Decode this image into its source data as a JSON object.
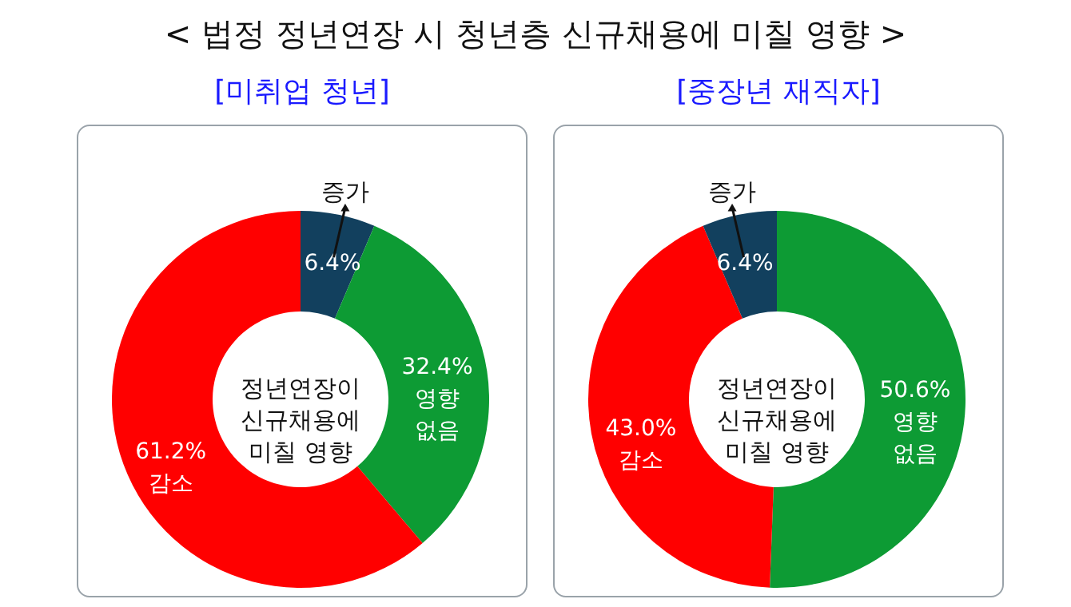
{
  "chart_data": [
    {
      "type": "donut",
      "title": "< 법정 정년연장 시 청년층 신규채용에 미칠 영향 >",
      "subtitle": "[미취업 청년]",
      "categories": [
        "증가",
        "영향 없음",
        "감소"
      ],
      "values": [
        6.4,
        32.4,
        61.2
      ],
      "value_labels": [
        "6.4%",
        "32.4%",
        "61.2%"
      ],
      "colors": [
        "#12405e",
        "#0d9b34",
        "#ff0000"
      ],
      "annotations": [
        "정년연장이\n신규채용에\n미칠 영향"
      ]
    },
    {
      "type": "donut",
      "subtitle": "[중장년 재직자]",
      "categories": [
        "영향 없음",
        "감소",
        "증가"
      ],
      "values": [
        50.6,
        43.0,
        6.4
      ],
      "value_labels": [
        "50.6%",
        "43.0%",
        "6.4%"
      ],
      "colors": [
        "#0d9b34",
        "#ff0000",
        "#12405e"
      ],
      "annotations": [
        "정년연장이\n신규채용에\n미칠 영향"
      ]
    }
  ]
}
